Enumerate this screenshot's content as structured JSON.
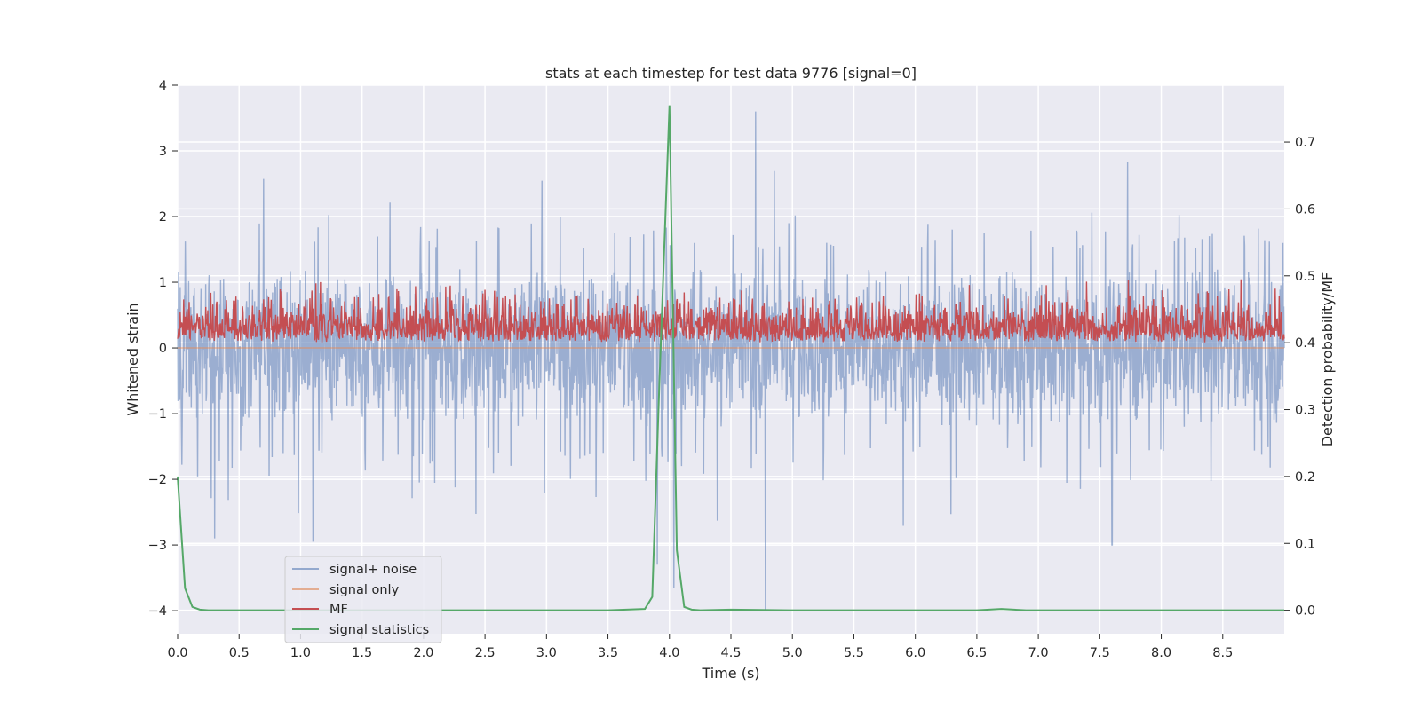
{
  "chart_data": {
    "type": "line",
    "title": "stats at each timestep for test data 9776 [signal=0]",
    "xlabel": "Time (s)",
    "ylabel": "Whitened strain",
    "y2label": "Detection probability/MF",
    "xlim": [
      0.0,
      9.0
    ],
    "ylim": [
      -4.35,
      4.0
    ],
    "y2lim": [
      -0.035,
      0.785
    ],
    "xticks": [
      "0.0",
      "0.5",
      "1.0",
      "1.5",
      "2.0",
      "2.5",
      "3.0",
      "3.5",
      "4.0",
      "4.5",
      "5.0",
      "5.5",
      "6.0",
      "6.5",
      "7.0",
      "7.5",
      "8.0",
      "8.5"
    ],
    "yticks": [
      "−4",
      "−3",
      "−2",
      "−1",
      "0",
      "1",
      "2",
      "3",
      "4"
    ],
    "y2ticks": [
      "0.0",
      "0.1",
      "0.2",
      "0.3",
      "0.4",
      "0.5",
      "0.6",
      "0.7"
    ],
    "grid": true,
    "legend_position": "lower-left",
    "colors": {
      "background": "#eaeaf2",
      "grid": "#ffffff",
      "signal_noise": "#4c72b0",
      "signal_only": "#dd8452",
      "mf": "#c44e52",
      "signal_statistics": "#55a868"
    },
    "series": [
      {
        "name": "signal+ noise",
        "axis": "left",
        "style": "noise",
        "approx_range": [
          -4.0,
          3.6
        ],
        "typical_positive_peak": 1.5,
        "typical_negative_peak": -1.5,
        "notable_spikes": [
          {
            "x": 4.7,
            "y": 3.6
          },
          {
            "x": 4.78,
            "y": -4.0
          },
          {
            "x": 3.9,
            "y": -3.3
          },
          {
            "x": 7.6,
            "y": -3.0
          },
          {
            "x": 1.1,
            "y": -2.95
          },
          {
            "x": 0.3,
            "y": -2.9
          }
        ]
      },
      {
        "name": "signal only",
        "axis": "left",
        "style": "line",
        "x": [
          0.0,
          9.0
        ],
        "y": [
          0.0,
          0.0
        ]
      },
      {
        "name": "MF",
        "axis": "right",
        "style": "noise",
        "approx_range": [
          0.4,
          0.5
        ],
        "typical_peak": 0.45
      },
      {
        "name": "signal statistics",
        "axis": "right",
        "style": "line",
        "x": [
          0.0,
          0.06,
          0.12,
          0.18,
          0.25,
          0.5,
          1.0,
          2.0,
          3.0,
          3.5,
          3.8,
          3.86,
          3.92,
          4.0,
          4.06,
          4.12,
          4.18,
          4.25,
          4.5,
          5.0,
          6.0,
          6.5,
          6.7,
          6.9,
          7.5,
          8.0,
          8.5,
          9.0
        ],
        "y": [
          0.2,
          0.033,
          0.005,
          0.001,
          0.0,
          0.0,
          0.0,
          0.0,
          0.0,
          0.0,
          0.002,
          0.02,
          0.35,
          0.755,
          0.09,
          0.005,
          0.001,
          0.0,
          0.001,
          0.0,
          0.0,
          0.0,
          0.002,
          0.0,
          0.0,
          0.0,
          0.0,
          0.0
        ]
      }
    ]
  }
}
